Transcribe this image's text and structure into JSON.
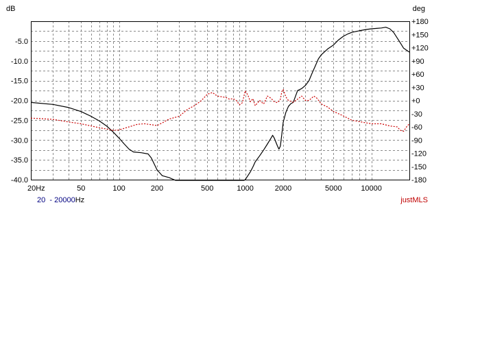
{
  "chart_data": {
    "type": "line",
    "ylabel_left": "dB",
    "ylabel_right": "deg",
    "x_scale": "log",
    "xlim": [
      20,
      20000
    ],
    "ylim_left": [
      -40,
      0
    ],
    "ylim_right": [
      -180,
      180
    ],
    "grid": true,
    "x_ticks": [
      {
        "value": 20,
        "label": "20Hz"
      },
      {
        "value": 50,
        "label": "50"
      },
      {
        "value": 100,
        "label": "100"
      },
      {
        "value": 200,
        "label": "200"
      },
      {
        "value": 500,
        "label": "500"
      },
      {
        "value": 1000,
        "label": "1000"
      },
      {
        "value": 2000,
        "label": "2000"
      },
      {
        "value": 5000,
        "label": "5000"
      },
      {
        "value": 10000,
        "label": "10000"
      }
    ],
    "y_ticks_left": [
      {
        "value": -5,
        "label": "-5.0"
      },
      {
        "value": -10,
        "label": "-10.0"
      },
      {
        "value": -15,
        "label": "-15.0"
      },
      {
        "value": -20,
        "label": "-20.0"
      },
      {
        "value": -25,
        "label": "-25.0"
      },
      {
        "value": -30,
        "label": "-30.0"
      },
      {
        "value": -35,
        "label": "-35.0"
      },
      {
        "value": -40,
        "label": "-40.0"
      }
    ],
    "y_ticks_right": [
      {
        "value": 180,
        "label": "+180"
      },
      {
        "value": 150,
        "label": "+150"
      },
      {
        "value": 120,
        "label": "+120"
      },
      {
        "value": 90,
        "label": "+90"
      },
      {
        "value": 60,
        "label": "+60"
      },
      {
        "value": 30,
        "label": "+30"
      },
      {
        "value": 0,
        "label": "+0"
      },
      {
        "value": -30,
        "label": "-30"
      },
      {
        "value": -60,
        "label": "-60"
      },
      {
        "value": -90,
        "label": "-90"
      },
      {
        "value": -120,
        "label": "-120"
      },
      {
        "value": -150,
        "label": "-150"
      },
      {
        "value": -180,
        "label": "-180"
      }
    ],
    "series": [
      {
        "axis": "left",
        "color": "#000000",
        "style": "solid",
        "points": [
          [
            20,
            -20.5
          ],
          [
            30,
            -21
          ],
          [
            40,
            -21.8
          ],
          [
            50,
            -22.8
          ],
          [
            60,
            -24
          ],
          [
            70,
            -25.2
          ],
          [
            80,
            -26.5
          ],
          [
            90,
            -28
          ],
          [
            100,
            -29.5
          ],
          [
            110,
            -31
          ],
          [
            120,
            -32.3
          ],
          [
            130,
            -33
          ],
          [
            150,
            -33.2
          ],
          [
            170,
            -33.5
          ],
          [
            180,
            -34.5
          ],
          [
            200,
            -37.5
          ],
          [
            220,
            -39
          ],
          [
            250,
            -39.5
          ],
          [
            280,
            -40.2
          ],
          [
            300,
            -41
          ],
          [
            980,
            -41
          ],
          [
            1000,
            -40
          ],
          [
            1050,
            -39
          ],
          [
            1100,
            -38
          ],
          [
            1150,
            -36.8
          ],
          [
            1200,
            -35.5
          ],
          [
            1300,
            -34
          ],
          [
            1400,
            -32.5
          ],
          [
            1500,
            -31
          ],
          [
            1600,
            -29.5
          ],
          [
            1650,
            -28.8
          ],
          [
            1700,
            -29.5
          ],
          [
            1800,
            -31.5
          ],
          [
            1850,
            -32.3
          ],
          [
            1900,
            -31.5
          ],
          [
            1950,
            -28.5
          ],
          [
            2000,
            -25.5
          ],
          [
            2100,
            -23
          ],
          [
            2200,
            -21.5
          ],
          [
            2300,
            -20.8
          ],
          [
            2400,
            -20.5
          ],
          [
            2500,
            -19
          ],
          [
            2600,
            -17.5
          ],
          [
            2800,
            -17
          ],
          [
            3000,
            -16.2
          ],
          [
            3200,
            -15
          ],
          [
            3400,
            -13
          ],
          [
            3600,
            -11.2
          ],
          [
            3800,
            -9.5
          ],
          [
            4000,
            -8.5
          ],
          [
            4500,
            -7
          ],
          [
            5000,
            -6
          ],
          [
            5500,
            -4.7
          ],
          [
            6000,
            -3.8
          ],
          [
            6500,
            -3.2
          ],
          [
            7000,
            -2.8
          ],
          [
            8000,
            -2.4
          ],
          [
            9000,
            -2.1
          ],
          [
            10000,
            -1.9
          ],
          [
            11000,
            -1.8
          ],
          [
            12000,
            -1.7
          ],
          [
            13000,
            -1.5
          ],
          [
            14000,
            -1.9
          ],
          [
            15000,
            -2.8
          ],
          [
            16000,
            -4.2
          ],
          [
            17000,
            -5.5
          ],
          [
            18000,
            -6.8
          ],
          [
            20000,
            -7.8
          ]
        ]
      },
      {
        "axis": "right",
        "color": "#cc0000",
        "style": "dotted",
        "points": [
          [
            20,
            -40
          ],
          [
            30,
            -43
          ],
          [
            40,
            -49
          ],
          [
            50,
            -53
          ],
          [
            60,
            -58
          ],
          [
            70,
            -62
          ],
          [
            80,
            -65
          ],
          [
            90,
            -68
          ],
          [
            100,
            -67
          ],
          [
            120,
            -60
          ],
          [
            140,
            -54
          ],
          [
            160,
            -53
          ],
          [
            180,
            -55
          ],
          [
            200,
            -57
          ],
          [
            220,
            -51
          ],
          [
            250,
            -42
          ],
          [
            300,
            -36
          ],
          [
            350,
            -20
          ],
          [
            400,
            -11
          ],
          [
            450,
            0
          ],
          [
            500,
            14
          ],
          [
            550,
            18
          ],
          [
            600,
            10
          ],
          [
            700,
            7
          ],
          [
            750,
            3
          ],
          [
            800,
            4
          ],
          [
            850,
            0
          ],
          [
            900,
            -10
          ],
          [
            950,
            -5
          ],
          [
            1000,
            22
          ],
          [
            1050,
            12
          ],
          [
            1100,
            -3
          ],
          [
            1150,
            4
          ],
          [
            1200,
            -12
          ],
          [
            1300,
            0
          ],
          [
            1400,
            -8
          ],
          [
            1500,
            10
          ],
          [
            1600,
            5
          ],
          [
            1700,
            -3
          ],
          [
            1800,
            -5
          ],
          [
            1900,
            3
          ],
          [
            1950,
            20
          ],
          [
            2000,
            25
          ],
          [
            2100,
            8
          ],
          [
            2200,
            0
          ],
          [
            2400,
            -4
          ],
          [
            2600,
            3
          ],
          [
            2800,
            10
          ],
          [
            3000,
            0
          ],
          [
            3200,
            0
          ],
          [
            3500,
            10
          ],
          [
            3700,
            5
          ],
          [
            4000,
            -8
          ],
          [
            4500,
            -15
          ],
          [
            5000,
            -25
          ],
          [
            6000,
            -35
          ],
          [
            7000,
            -45
          ],
          [
            8000,
            -48
          ],
          [
            10000,
            -53
          ],
          [
            12000,
            -53
          ],
          [
            14000,
            -58
          ],
          [
            16000,
            -60
          ],
          [
            17000,
            -68
          ],
          [
            18000,
            -70
          ],
          [
            19000,
            -60
          ],
          [
            20000,
            -53
          ]
        ]
      }
    ]
  },
  "footer": {
    "range_start": "20",
    "range_separator": "-",
    "range_end": "20000",
    "range_unit": "Hz",
    "brand": "justMLS"
  }
}
